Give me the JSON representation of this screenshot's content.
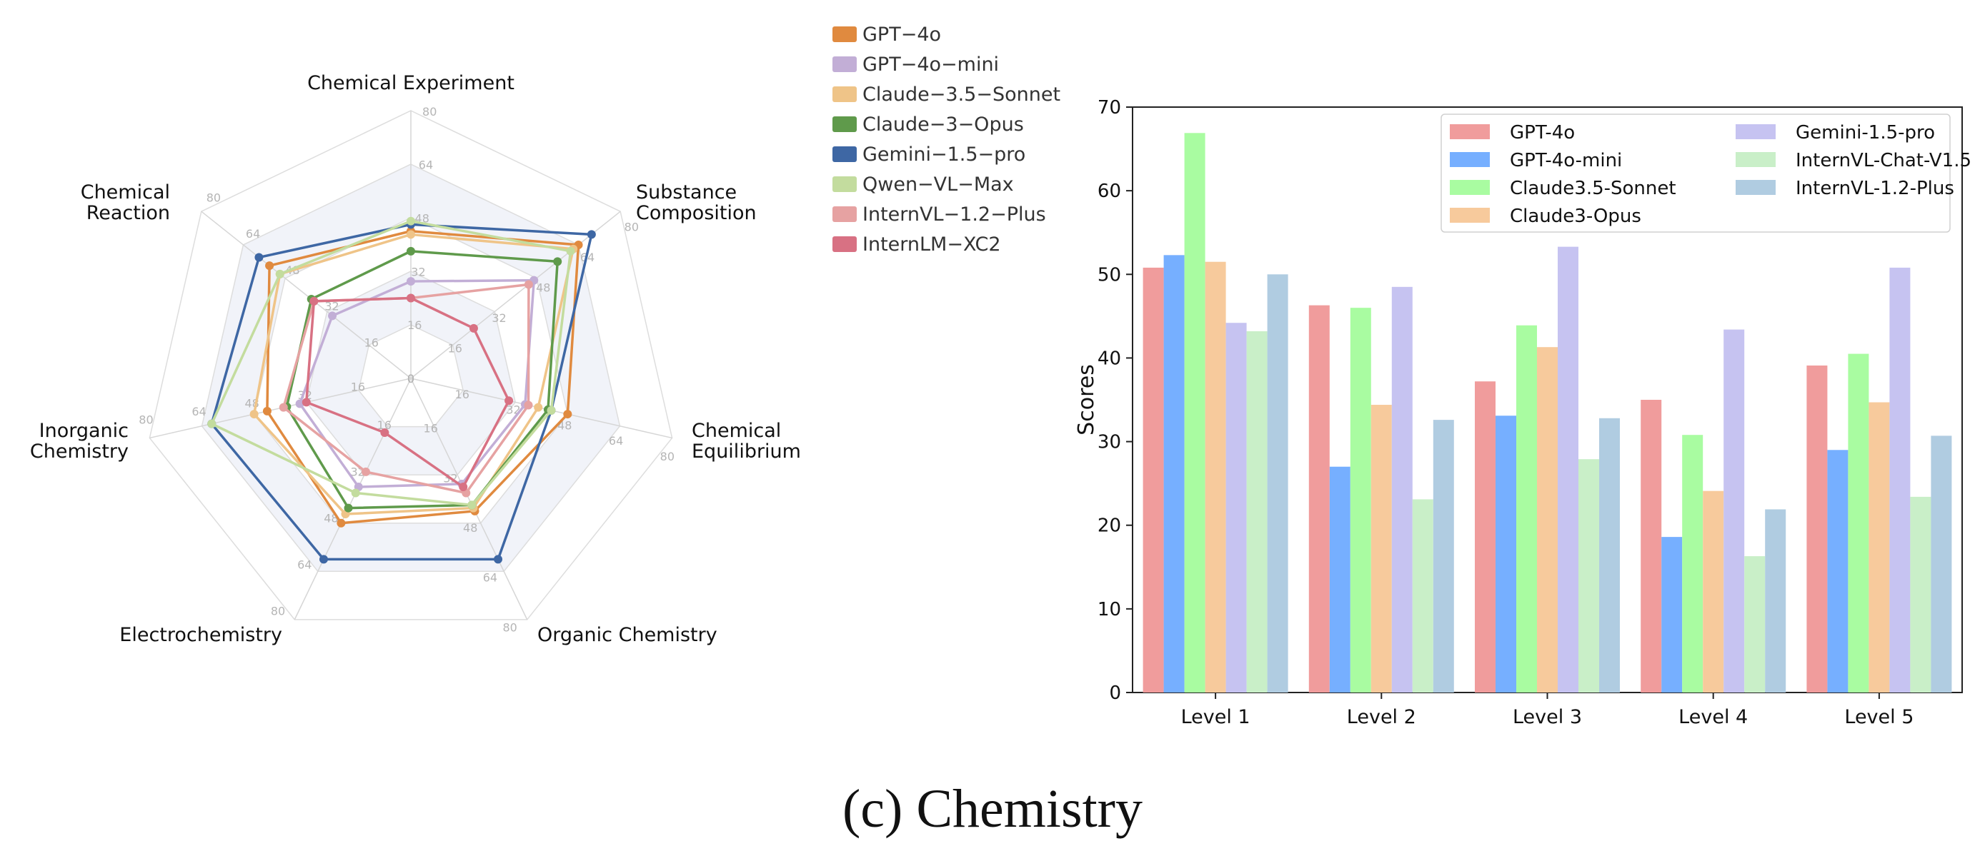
{
  "caption": "(c) Chemistry",
  "chart_data": [
    {
      "type": "radar",
      "axes": [
        "Chemical Experiment",
        "Substance Composition",
        "Chemical Equilibrium",
        "Organic Chemistry",
        "Electrochemistry",
        "Inorganic Chemistry",
        "Chemical Reaction"
      ],
      "rlim": [
        0,
        80
      ],
      "ticks": [
        0,
        16,
        32,
        48,
        64,
        80
      ],
      "legend_position": "top-right",
      "series": [
        {
          "name": "GPT−4o",
          "color": "#e08a3f",
          "values": [
            44,
            64,
            48,
            44,
            48,
            44,
            54
          ]
        },
        {
          "name": "GPT−4o−mini",
          "color": "#c2aed6",
          "values": [
            29,
            47,
            35,
            35,
            36,
            34,
            30
          ]
        },
        {
          "name": "Claude−3.5−Sonnet",
          "color": "#efc488",
          "values": [
            43,
            62,
            39,
            43,
            45,
            48,
            50
          ]
        },
        {
          "name": "Claude−3−Opus",
          "color": "#5f9a4b",
          "values": [
            38,
            56,
            42,
            42,
            43,
            38,
            38
          ]
        },
        {
          "name": "Gemini−1.5−pro",
          "color": "#3e67a4",
          "values": [
            46,
            69,
            43,
            60,
            60,
            61,
            58
          ]
        },
        {
          "name": "Qwen−VL−Max",
          "color": "#c3dc9e",
          "values": [
            47,
            61,
            43,
            42,
            38,
            61,
            50
          ]
        },
        {
          "name": "InternVL−1.2−Plus",
          "color": "#e6a2a2",
          "values": [
            24,
            45,
            36,
            38,
            31,
            39,
            37
          ]
        },
        {
          "name": "InternLM−XC2",
          "color": "#d87183",
          "values": [
            24,
            24,
            30,
            36,
            18,
            32,
            37
          ]
        }
      ]
    },
    {
      "type": "bar",
      "categories": [
        "Level 1",
        "Level 2",
        "Level 3",
        "Level 4",
        "Level 5"
      ],
      "ylabel": "Scores",
      "ylim": [
        0,
        70
      ],
      "yticks": [
        0,
        10,
        20,
        30,
        40,
        50,
        60,
        70
      ],
      "grid": false,
      "legend_position": "top-right",
      "series": [
        {
          "name": "GPT-4o",
          "color": "#f09c9c",
          "values": [
            50.8,
            46.3,
            37.2,
            35.0,
            39.1
          ]
        },
        {
          "name": "GPT-4o-mini",
          "color": "#76afff",
          "values": [
            52.3,
            27.0,
            33.1,
            18.6,
            29.0
          ]
        },
        {
          "name": "Claude3.5-Sonnet",
          "color": "#a9fca1",
          "values": [
            66.9,
            46.0,
            43.9,
            30.8,
            40.5
          ]
        },
        {
          "name": "Claude3-Opus",
          "color": "#f7ca9c",
          "values": [
            51.5,
            34.4,
            41.3,
            24.1,
            34.7
          ]
        },
        {
          "name": "Gemini-1.5-pro",
          "color": "#c6c3f1",
          "values": [
            44.2,
            48.5,
            53.3,
            43.4,
            50.8
          ]
        },
        {
          "name": "InternVL-Chat-V1.5",
          "color": "#c9efc8",
          "values": [
            43.2,
            23.1,
            27.9,
            16.3,
            23.4
          ]
        },
        {
          "name": "InternVL-1.2-Plus",
          "color": "#b0cce1",
          "values": [
            50.0,
            32.6,
            32.8,
            21.9,
            30.7
          ]
        }
      ]
    }
  ]
}
